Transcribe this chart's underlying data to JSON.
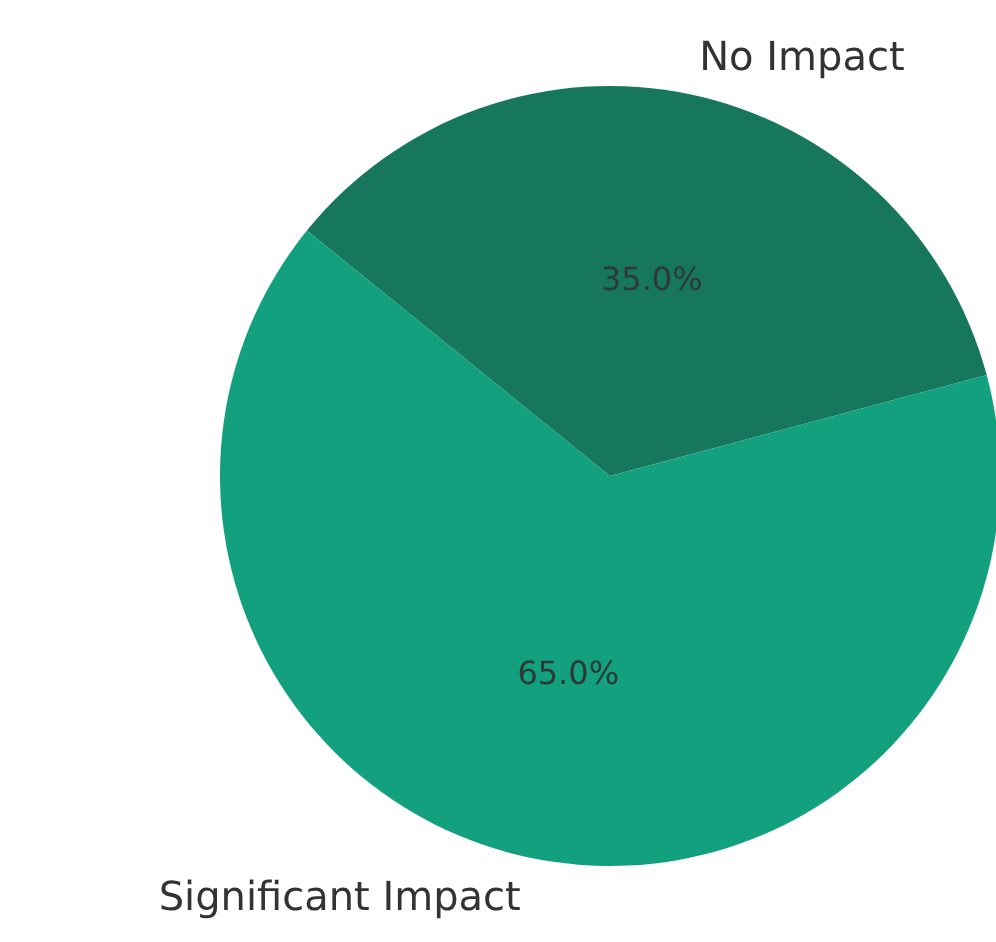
{
  "chart_data": {
    "type": "pie",
    "categories": [
      "No Impact",
      "Significant Impact"
    ],
    "values": [
      35,
      65
    ],
    "colors": [
      "#17775c",
      "#13a07e"
    ],
    "value_labels": [
      "35.0%",
      "65.0%"
    ]
  }
}
